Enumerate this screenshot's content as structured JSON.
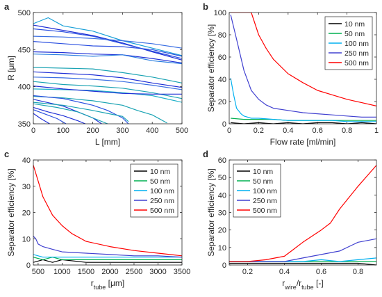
{
  "chart_data": [
    {
      "panel_label": "a",
      "type": "line",
      "xlabel": "L [mm]",
      "ylabel": "R [μm]",
      "xlim": [
        0,
        500
      ],
      "ylim": [
        350,
        500
      ],
      "xticks": [
        0,
        100,
        200,
        300,
        400,
        500
      ],
      "yticks": [
        350,
        400,
        450,
        500
      ],
      "series": [
        {
          "color": "#1f2fd6",
          "x": [
            0,
            100,
            200,
            300,
            400,
            500
          ],
          "y": [
            483,
            476,
            469,
            459,
            447,
            436
          ]
        },
        {
          "color": "#2a4fe0",
          "x": [
            0,
            100,
            200,
            300,
            400,
            500
          ],
          "y": [
            478,
            474,
            468,
            458,
            448,
            438
          ]
        },
        {
          "color": "#1aa0d8",
          "x": [
            0,
            50,
            100,
            200,
            300,
            400,
            500
          ],
          "y": [
            485,
            493,
            482,
            475,
            462,
            452,
            442
          ]
        },
        {
          "color": "#3a6fe3",
          "x": [
            0,
            100,
            200,
            300,
            400,
            500
          ],
          "y": [
            468,
            467,
            465,
            462,
            458,
            452
          ]
        },
        {
          "color": "#2a4fe0",
          "x": [
            0,
            100,
            200,
            300,
            400,
            500
          ],
          "y": [
            461,
            458,
            455,
            454,
            450,
            441
          ]
        },
        {
          "color": "#1f2fd6",
          "x": [
            0,
            100,
            200,
            300,
            400,
            500
          ],
          "y": [
            447,
            446,
            444,
            443,
            438,
            432
          ]
        },
        {
          "color": "#2a7fe0",
          "x": [
            0,
            100,
            200,
            300,
            400,
            500
          ],
          "y": [
            444,
            443,
            441,
            443,
            435,
            431
          ]
        },
        {
          "color": "#1aa3b3",
          "x": [
            0,
            100,
            200,
            300,
            400,
            500
          ],
          "y": [
            426,
            425,
            424,
            419,
            413,
            405
          ]
        },
        {
          "color": "#1f2fd6",
          "x": [
            0,
            100,
            200,
            300,
            400,
            500
          ],
          "y": [
            420,
            418,
            416,
            412,
            405,
            399
          ]
        },
        {
          "color": "#3a6fe3",
          "x": [
            0,
            100,
            200,
            300,
            400,
            500
          ],
          "y": [
            413,
            412,
            410,
            407,
            402,
            396
          ]
        },
        {
          "color": "#1aa3b3",
          "x": [
            0,
            100,
            200,
            300,
            400,
            500
          ],
          "y": [
            407,
            403,
            401,
            398,
            392,
            384
          ]
        },
        {
          "color": "#1fb0c8",
          "x": [
            0,
            100,
            200,
            300,
            400,
            500
          ],
          "y": [
            397,
            396,
            395,
            392,
            388,
            379
          ]
        },
        {
          "color": "#1f2fd6",
          "x": [
            0,
            100,
            200,
            300,
            400,
            500
          ],
          "y": [
            401,
            397,
            394,
            391,
            390,
            390
          ]
        },
        {
          "color": "#1aa3b3",
          "x": [
            0,
            100,
            200,
            300,
            350,
            400,
            450
          ],
          "y": [
            387,
            385,
            381,
            375,
            368,
            362,
            351
          ]
        },
        {
          "color": "#2a4fe0",
          "x": [
            0,
            100,
            200,
            250,
            300,
            320
          ],
          "y": [
            388,
            384,
            375,
            368,
            358,
            350
          ]
        },
        {
          "color": "#1f2fd6",
          "x": [
            0,
            100,
            150,
            200,
            230
          ],
          "y": [
            383,
            374,
            366,
            358,
            350
          ]
        },
        {
          "color": "#1aa3b3",
          "x": [
            0,
            80,
            150,
            200,
            250
          ],
          "y": [
            377,
            372,
            366,
            358,
            350
          ]
        },
        {
          "color": "#1f2fd6",
          "x": [
            0,
            50,
            100,
            150,
            175
          ],
          "y": [
            372,
            366,
            361,
            354,
            350
          ]
        },
        {
          "color": "#2a4fe0",
          "x": [
            0,
            40,
            80,
            110
          ],
          "y": [
            369,
            363,
            357,
            350
          ]
        },
        {
          "color": "#1f2fd6",
          "x": [
            0,
            25,
            55
          ],
          "y": [
            364,
            357,
            350
          ]
        },
        {
          "color": "#1aa3b3",
          "x": [
            0,
            100,
            200,
            250,
            300,
            320
          ],
          "y": [
            379,
            375,
            368,
            364,
            360,
            353
          ]
        }
      ]
    },
    {
      "panel_label": "b",
      "type": "line",
      "xlabel": "Flow rate [ml/min]",
      "ylabel": "Separator efficiency [%]",
      "xlim": [
        0,
        1
      ],
      "ylim": [
        0,
        100
      ],
      "xticks": [
        0,
        0.2,
        0.4,
        0.6,
        0.8,
        1
      ],
      "yticks": [
        0,
        20,
        40,
        60,
        80,
        100
      ],
      "legend_position": "top-right",
      "series": [
        {
          "name": "10 nm",
          "color": "#000000",
          "x": [
            0.01,
            0.1,
            0.2,
            0.3,
            0.4,
            0.5,
            0.6,
            0.7,
            0.8,
            0.9,
            1.0
          ],
          "y": [
            1,
            0,
            1,
            0,
            1,
            0,
            1,
            1,
            0,
            1,
            0
          ]
        },
        {
          "name": "50 nm",
          "color": "#00b050",
          "x": [
            0.01,
            0.1,
            0.2,
            0.3,
            0.4,
            0.5,
            0.6,
            0.7,
            0.8,
            0.9,
            1.0
          ],
          "y": [
            5,
            4,
            4,
            4,
            3,
            3,
            3,
            3,
            3,
            3,
            3
          ]
        },
        {
          "name": "100 nm",
          "color": "#00b0f0",
          "x": [
            0.01,
            0.03,
            0.05,
            0.08,
            0.1,
            0.15,
            0.2,
            0.3,
            0.4,
            0.5,
            0.6,
            0.7,
            0.8,
            0.9,
            1.0
          ],
          "y": [
            41,
            26,
            14,
            9,
            7,
            5,
            5,
            4,
            3,
            3,
            3,
            3,
            2,
            2,
            2
          ]
        },
        {
          "name": "250 nm",
          "color": "#4040d0",
          "x": [
            0.01,
            0.05,
            0.1,
            0.15,
            0.2,
            0.25,
            0.3,
            0.4,
            0.5,
            0.6,
            0.7,
            0.8,
            0.9,
            1.0
          ],
          "y": [
            98,
            76,
            48,
            30,
            22,
            17,
            14,
            12,
            10,
            9,
            8,
            7,
            6,
            6
          ]
        },
        {
          "name": "500 nm",
          "color": "#ff0000",
          "x": [
            0.01,
            0.1,
            0.15,
            0.2,
            0.25,
            0.3,
            0.4,
            0.5,
            0.6,
            0.7,
            0.8,
            0.9,
            1.0
          ],
          "y": [
            100,
            100,
            100,
            80,
            68,
            58,
            45,
            37,
            30,
            26,
            22,
            19,
            16
          ]
        }
      ]
    },
    {
      "panel_label": "c",
      "type": "line",
      "xlabel": "r_tube [μm]",
      "ylabel": "Separator efficiency [%]",
      "xlim": [
        400,
        3500
      ],
      "ylim": [
        0,
        40
      ],
      "xticks": [
        500,
        1000,
        1500,
        2000,
        2500,
        3000,
        3500
      ],
      "yticks": [
        0,
        10,
        20,
        30,
        40
      ],
      "legend_position": "top-right",
      "series": [
        {
          "name": "10 nm",
          "color": "#000000",
          "x": [
            400,
            600,
            800,
            1000,
            1500,
            2000,
            2500,
            3000,
            3500
          ],
          "y": [
            1,
            2,
            1,
            2,
            1,
            1,
            1,
            1,
            1
          ]
        },
        {
          "name": "50 nm",
          "color": "#00b050",
          "x": [
            400,
            600,
            800,
            1000,
            1500,
            2000,
            2500,
            3000,
            3500
          ],
          "y": [
            3,
            2,
            3,
            2,
            2,
            2,
            2,
            2,
            2
          ]
        },
        {
          "name": "100 nm",
          "color": "#00b0f0",
          "x": [
            400,
            600,
            800,
            1000,
            1500,
            2000,
            2500,
            3000,
            3500
          ],
          "y": [
            4,
            3,
            3,
            3,
            3,
            3,
            3,
            3,
            3
          ]
        },
        {
          "name": "250 nm",
          "color": "#4040d0",
          "x": [
            400,
            450,
            500,
            600,
            800,
            1000,
            1500,
            2000,
            2500,
            3000,
            3500
          ],
          "y": [
            11,
            10,
            8,
            7,
            6,
            5,
            4.5,
            4,
            3.5,
            3.5,
            3
          ]
        },
        {
          "name": "500 nm",
          "color": "#ff0000",
          "x": [
            400,
            500,
            600,
            800,
            1000,
            1200,
            1500,
            2000,
            2500,
            3000,
            3500
          ],
          "y": [
            38,
            32,
            26,
            19,
            15,
            12,
            9,
            7,
            5.5,
            4.5,
            3.5
          ]
        }
      ]
    },
    {
      "panel_label": "d",
      "type": "line",
      "xlabel": "r_wire/r_tube [-]",
      "ylabel": "Separator efficiency [%]",
      "xlim": [
        0.1,
        0.9
      ],
      "ylim": [
        0,
        60
      ],
      "xticks": [
        0.2,
        0.4,
        0.6,
        0.8
      ],
      "yticks": [
        0,
        10,
        20,
        30,
        40,
        50,
        60
      ],
      "legend_position": "top-left",
      "series": [
        {
          "name": "10 nm",
          "color": "#000000",
          "x": [
            0.1,
            0.2,
            0.3,
            0.4,
            0.5,
            0.6,
            0.7,
            0.8,
            0.9
          ],
          "y": [
            1,
            1,
            1,
            1,
            1,
            1,
            1,
            1,
            0
          ]
        },
        {
          "name": "50 nm",
          "color": "#00b050",
          "x": [
            0.1,
            0.2,
            0.3,
            0.4,
            0.5,
            0.6,
            0.7,
            0.8,
            0.9
          ],
          "y": [
            2,
            2,
            2,
            2,
            2,
            2,
            2,
            2,
            2
          ]
        },
        {
          "name": "100 nm",
          "color": "#00b0f0",
          "x": [
            0.1,
            0.2,
            0.3,
            0.4,
            0.5,
            0.6,
            0.7,
            0.8,
            0.9
          ],
          "y": [
            2,
            2,
            2,
            2,
            2,
            3,
            2,
            3,
            4
          ]
        },
        {
          "name": "250 nm",
          "color": "#4040d0",
          "x": [
            0.1,
            0.2,
            0.3,
            0.4,
            0.5,
            0.6,
            0.7,
            0.8,
            0.9
          ],
          "y": [
            2,
            2,
            2,
            2,
            4,
            6,
            8,
            13,
            15
          ]
        },
        {
          "name": "500 nm",
          "color": "#ff0000",
          "x": [
            0.1,
            0.2,
            0.3,
            0.4,
            0.45,
            0.5,
            0.6,
            0.65,
            0.7,
            0.8,
            0.9
          ],
          "y": [
            2,
            2,
            3,
            5,
            9,
            13,
            20,
            24,
            32,
            45,
            57
          ]
        }
      ]
    }
  ]
}
